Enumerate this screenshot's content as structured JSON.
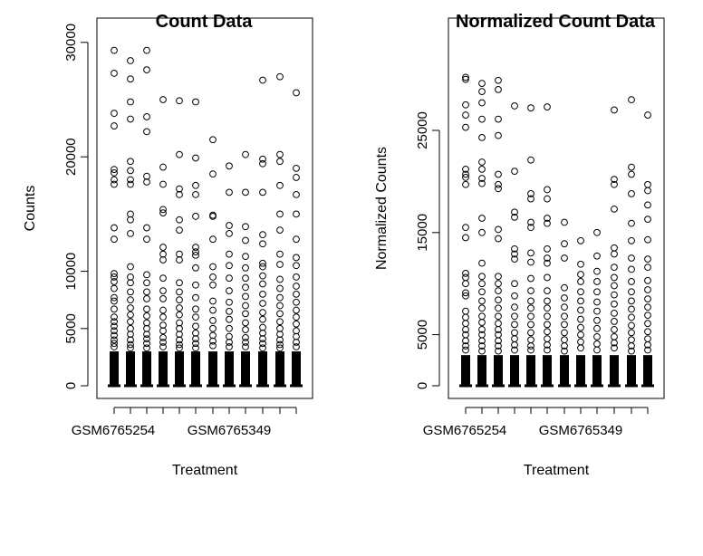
{
  "chart_data": [
    {
      "type": "boxplot",
      "title": "Count Data",
      "xlabel": "Treatment",
      "ylabel": "Counts",
      "yticks": [
        0,
        5000,
        10000,
        20000,
        30000
      ],
      "ylim": [
        0,
        30500
      ],
      "xtick_labels_shown": [
        "GSM6765254",
        "GSM6765349"
      ],
      "n_groups": 12,
      "box_upper_bound": 3000,
      "outliers": [
        [
          29300,
          27300,
          23800,
          22700,
          18900,
          18600,
          18000,
          17600,
          13800,
          12800,
          9800,
          9500,
          9100,
          8500,
          7700,
          7400,
          6700,
          6000,
          5600,
          5200,
          4800,
          4400,
          4000,
          3700,
          3400
        ],
        [
          28400,
          26800,
          24800,
          23300,
          19600,
          18800,
          18000,
          17600,
          15000,
          14500,
          13300,
          10400,
          9500,
          9000,
          8200,
          7500,
          6800,
          6200,
          5600,
          5000,
          4500,
          4000,
          3600,
          3300
        ],
        [
          29300,
          27600,
          23500,
          22200,
          18300,
          17800,
          13800,
          12800,
          9700,
          9000,
          8200,
          7600,
          6700,
          6100,
          5500,
          5000,
          4500,
          4100,
          3700,
          3300
        ],
        [
          25000,
          19100,
          17600,
          15400,
          15100,
          12100,
          11500,
          11000,
          9400,
          8300,
          7600,
          6600,
          6000,
          5300,
          4800,
          4200,
          3800,
          3400
        ],
        [
          24900,
          20200,
          17200,
          16700,
          14500,
          13600,
          11500,
          11000,
          9000,
          8200,
          7500,
          6800,
          6200,
          5500,
          5000,
          4500,
          4000,
          3600,
          3300
        ],
        [
          24800,
          19900,
          17500,
          16700,
          14800,
          12100,
          11700,
          11400,
          10300,
          8800,
          7700,
          6700,
          6000,
          5200,
          4600,
          4100,
          3700,
          3300
        ],
        [
          21500,
          18500,
          14900,
          14800,
          12800,
          10400,
          9500,
          8800,
          7400,
          6600,
          5700,
          5000,
          4400,
          3900,
          3500
        ],
        [
          19200,
          16900,
          14000,
          13300,
          11500,
          10500,
          9400,
          8300,
          7300,
          6500,
          5800,
          5000,
          4300,
          3800,
          3400
        ],
        [
          20200,
          16900,
          13900,
          12700,
          11300,
          10300,
          9400,
          8600,
          7800,
          7000,
          6300,
          5500,
          4900,
          4200,
          3800,
          3400
        ],
        [
          26700,
          19800,
          19400,
          16900,
          13200,
          12400,
          10700,
          10400,
          9600,
          8900,
          8000,
          7200,
          6400,
          5800,
          5100,
          4600,
          4100,
          3700,
          3300
        ],
        [
          27000,
          20200,
          19600,
          17500,
          15000,
          13600,
          11500,
          10600,
          9300,
          8500,
          7700,
          7000,
          6300,
          5600,
          5000,
          4500,
          4000,
          3600,
          3300
        ],
        [
          25600,
          19000,
          18200,
          16700,
          15000,
          12800,
          11200,
          10500,
          9500,
          8700,
          8000,
          7300,
          6600,
          6000,
          5400,
          4800,
          4300,
          3800,
          3400
        ]
      ]
    },
    {
      "type": "boxplot",
      "title": "Normalized Count Data",
      "xlabel": "Treatment",
      "ylabel": "Normalized Counts",
      "yticks": [
        0,
        5000,
        15000,
        25000
      ],
      "ylim": [
        0,
        31000
      ],
      "xtick_labels_shown": [
        "GSM6765254",
        "GSM6765349"
      ],
      "n_groups": 12,
      "box_upper_bound": 3000,
      "outliers": [
        [
          30200,
          30000,
          27500,
          26500,
          25300,
          21200,
          20700,
          20400,
          19700,
          15500,
          14500,
          11000,
          10600,
          10000,
          9100,
          8800,
          7300,
          6700,
          6100,
          5500,
          5000,
          4400,
          3900,
          3500
        ],
        [
          29600,
          28800,
          27700,
          26100,
          24300,
          21900,
          21200,
          20300,
          19800,
          16400,
          15000,
          12000,
          10700,
          10000,
          9200,
          8300,
          7600,
          6800,
          6200,
          5500,
          5000,
          4400,
          3900,
          3400
        ],
        [
          29900,
          29000,
          26100,
          24500,
          20700,
          19700,
          19300,
          15300,
          14400,
          10700,
          10000,
          9300,
          8400,
          7600,
          6800,
          6100,
          5500,
          5000,
          4400,
          3900,
          3400
        ],
        [
          27400,
          21000,
          17000,
          16500,
          13400,
          12900,
          12400,
          10000,
          8800,
          7700,
          6800,
          6000,
          5200,
          4600,
          4000,
          3500
        ],
        [
          27200,
          22100,
          18800,
          18300,
          16000,
          15500,
          13000,
          12100,
          10500,
          9300,
          8300,
          7600,
          6800,
          6000,
          5200,
          4500,
          3900,
          3500
        ],
        [
          27300,
          19200,
          18300,
          16400,
          15900,
          13400,
          12500,
          12000,
          10600,
          9300,
          8300,
          7600,
          6800,
          6000,
          5300,
          4600,
          4000,
          3500
        ],
        [
          16000,
          13900,
          12500,
          9600,
          8600,
          7700,
          6800,
          6000,
          5200,
          4500,
          3900,
          3400
        ],
        [
          14200,
          11900,
          10900,
          10200,
          9200,
          8300,
          7400,
          6500,
          5700,
          5000,
          4300,
          3700
        ],
        [
          15000,
          12700,
          11200,
          10200,
          9200,
          8200,
          7300,
          6400,
          5600,
          4800,
          4100,
          3500
        ],
        [
          27000,
          20200,
          19700,
          17300,
          13500,
          12900,
          11600,
          10600,
          9800,
          8900,
          8000,
          7100,
          6300,
          5500,
          4800,
          4200,
          3700
        ],
        [
          28000,
          21400,
          20700,
          18800,
          15900,
          14200,
          12500,
          11400,
          10200,
          9200,
          8300,
          7500,
          6700,
          5900,
          5200,
          4500,
          3900,
          3400
        ],
        [
          26500,
          19700,
          19100,
          17700,
          16300,
          14300,
          12400,
          11600,
          10300,
          9400,
          8500,
          7700,
          6900,
          6100,
          5300,
          4600,
          4000,
          3500
        ]
      ]
    }
  ]
}
